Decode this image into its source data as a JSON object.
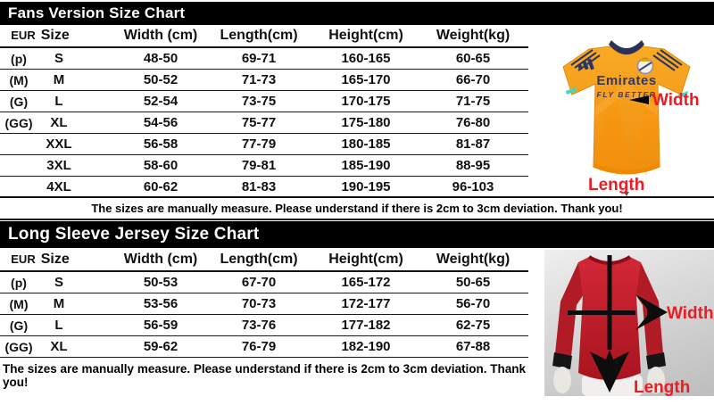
{
  "colors": {
    "bar_background": "#000000",
    "bar_text": "#ffffff",
    "label_red": "#ec1c24",
    "table_line": "#1a1a1a",
    "fans_jersey_orange": "#f7a01e",
    "long_sleeve_jersey_red": "#c32030"
  },
  "fans_chart": {
    "title": "Fans Version Size Chart",
    "columns": {
      "eur": "EUR",
      "size": "Size",
      "width": "Width (cm)",
      "length": "Length(cm)",
      "height": "Height(cm)",
      "weight": "Weight(kg)"
    },
    "rows": [
      {
        "eur": "(p)",
        "size": "S",
        "width": "48-50",
        "length": "69-71",
        "height": "160-165",
        "weight": "60-65"
      },
      {
        "eur": "(M)",
        "size": "M",
        "width": "50-52",
        "length": "71-73",
        "height": "165-170",
        "weight": "66-70"
      },
      {
        "eur": "(G)",
        "size": "L",
        "width": "52-54",
        "length": "73-75",
        "height": "170-175",
        "weight": "71-75"
      },
      {
        "eur": "(GG)",
        "size": "XL",
        "width": "54-56",
        "length": "75-77",
        "height": "175-180",
        "weight": "76-80"
      },
      {
        "eur": "",
        "size": "XXL",
        "width": "56-58",
        "length": "77-79",
        "height": "180-185",
        "weight": "81-87"
      },
      {
        "eur": "",
        "size": "3XL",
        "width": "58-60",
        "length": "79-81",
        "height": "185-190",
        "weight": "88-95"
      },
      {
        "eur": "",
        "size": "4XL",
        "width": "60-62",
        "length": "81-83",
        "height": "190-195",
        "weight": "96-103"
      }
    ],
    "note": "The sizes are manually measure. Please understand if there is 2cm to 3cm deviation. Thank you!"
  },
  "long_sleeve_chart": {
    "title": "Long Sleeve Jersey Size Chart",
    "columns": {
      "eur": "EUR",
      "size": "Size",
      "width": "Width (cm)",
      "length": "Length(cm)",
      "height": "Height(cm)",
      "weight": "Weight(kg)"
    },
    "rows": [
      {
        "eur": "(p)",
        "size": "S",
        "width": "50-53",
        "length": "67-70",
        "height": "165-172",
        "weight": "50-65"
      },
      {
        "eur": "(M)",
        "size": "M",
        "width": "53-56",
        "length": "70-73",
        "height": "172-177",
        "weight": "56-70"
      },
      {
        "eur": "(G)",
        "size": "L",
        "width": "56-59",
        "length": "73-76",
        "height": "177-182",
        "weight": "62-75"
      },
      {
        "eur": "(GG)",
        "size": "XL",
        "width": "59-62",
        "length": "76-79",
        "height": "182-190",
        "weight": "67-88"
      }
    ],
    "note": "The sizes are manually measure. Please understand if there is 2cm to 3cm deviation. Thank you!"
  },
  "fans_photo": {
    "width_label": "Width",
    "length_label": "Length",
    "jersey_sponsor": "Emirates",
    "jersey_tagline": "FLY BETTER"
  },
  "long_sleeve_photo": {
    "width_label": "Width",
    "length_label": "Length"
  }
}
